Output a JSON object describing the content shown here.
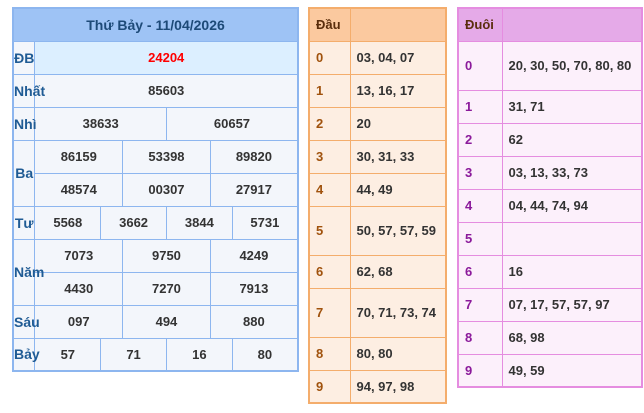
{
  "results": {
    "title": "Thứ Bảy - 11/04/2026",
    "prizes": [
      {
        "label": "ĐB",
        "values": [
          "24204"
        ]
      },
      {
        "label": "Nhất",
        "values": [
          "85603"
        ]
      },
      {
        "label": "Nhì",
        "values": [
          "38633",
          "60657"
        ]
      },
      {
        "label": "Ba",
        "values": [
          "86159",
          "53398",
          "89820",
          "48574",
          "00307",
          "27917"
        ]
      },
      {
        "label": "Tư",
        "values": [
          "5568",
          "3662",
          "3844",
          "5731"
        ]
      },
      {
        "label": "Năm",
        "values": [
          "7073",
          "9750",
          "4249",
          "4430",
          "7270",
          "7913"
        ]
      },
      {
        "label": "Sáu",
        "values": [
          "097",
          "494",
          "880"
        ]
      },
      {
        "label": "Bảy",
        "values": [
          "57",
          "71",
          "16",
          "80"
        ]
      }
    ]
  },
  "dau": {
    "header": "Đầu",
    "rows": [
      {
        "k": "0",
        "v": "03, 04, 07"
      },
      {
        "k": "1",
        "v": "13, 16, 17"
      },
      {
        "k": "2",
        "v": "20"
      },
      {
        "k": "3",
        "v": "30, 31, 33"
      },
      {
        "k": "4",
        "v": "44, 49"
      },
      {
        "k": "5",
        "v": "50, 57, 57, 59"
      },
      {
        "k": "6",
        "v": "62, 68"
      },
      {
        "k": "7",
        "v": "70, 71, 73, 74"
      },
      {
        "k": "8",
        "v": "80, 80"
      },
      {
        "k": "9",
        "v": "94, 97, 98"
      }
    ]
  },
  "duoi": {
    "header": "Đuôi",
    "rows": [
      {
        "k": "0",
        "v": "20, 30, 50, 70, 80, 80"
      },
      {
        "k": "1",
        "v": "31, 71"
      },
      {
        "k": "2",
        "v": "62"
      },
      {
        "k": "3",
        "v": "03, 13, 33, 73"
      },
      {
        "k": "4",
        "v": "04, 44, 74, 94"
      },
      {
        "k": "5",
        "v": ""
      },
      {
        "k": "6",
        "v": "16"
      },
      {
        "k": "7",
        "v": "07, 17, 57, 57, 97"
      },
      {
        "k": "8",
        "v": "68, 98"
      },
      {
        "k": "9",
        "v": "49, 59"
      }
    ]
  }
}
